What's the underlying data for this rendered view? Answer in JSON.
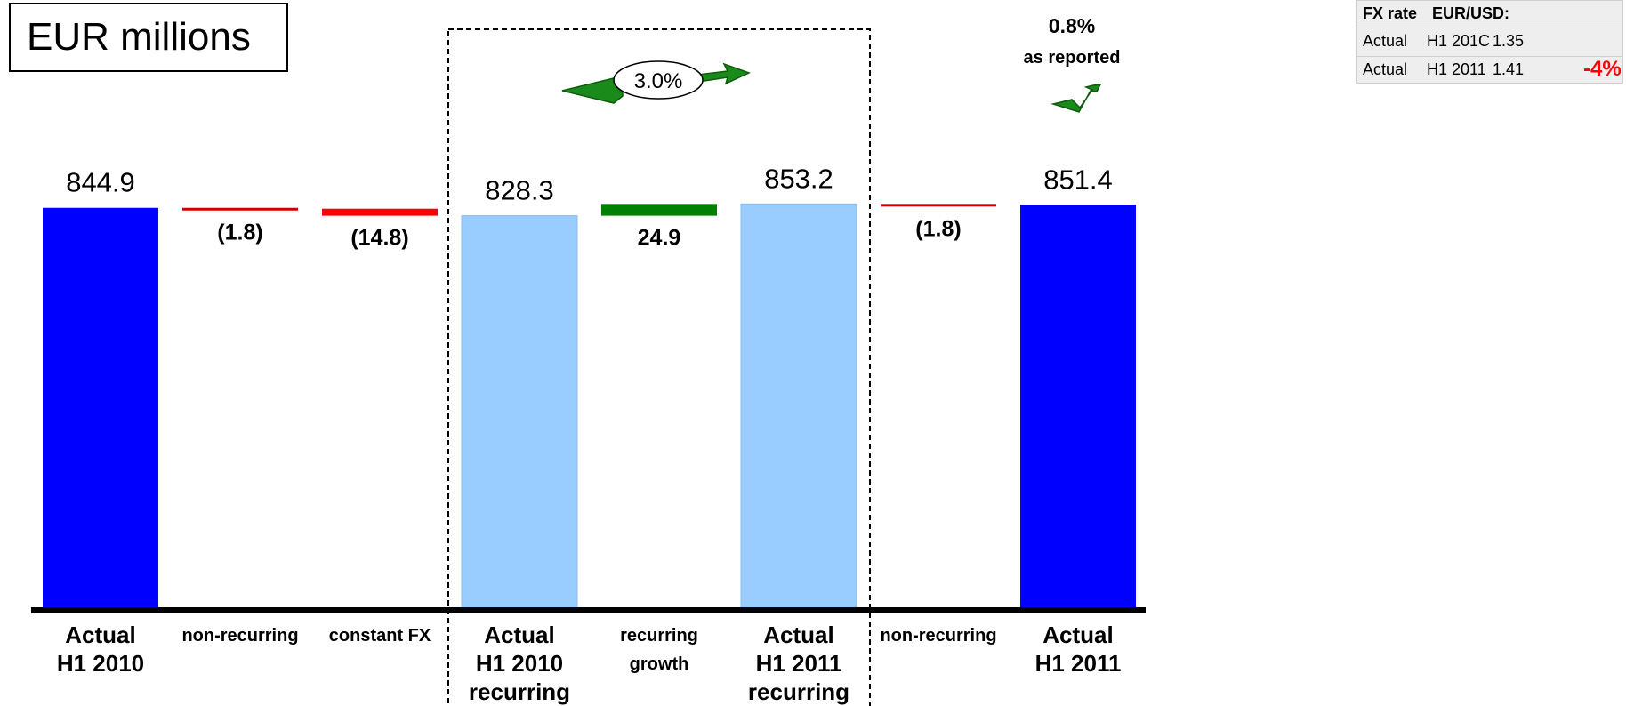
{
  "unit_label": "EUR millions",
  "fx_table": {
    "header": [
      "FX rate",
      "EUR/USD:"
    ],
    "rows": [
      {
        "label": "Actual",
        "period": "H1 201C",
        "rate": "1.35",
        "change": ""
      },
      {
        "label": "Actual",
        "period": "H1 2011",
        "rate": "1.41",
        "change": "-4%"
      }
    ]
  },
  "growth_callouts": {
    "recurring_growth": "3.0%",
    "reported_growth_value": "0.8%",
    "reported_growth_label": "as reported"
  },
  "colors": {
    "total": "#0000ff",
    "recurring_total": "#99ccff",
    "decrease": "#ff0000",
    "decrease_thin": "#cc0000",
    "increase": "#008000",
    "arrow": "#1a8a1a"
  },
  "chart_data": {
    "type": "bar",
    "subtype": "waterfall",
    "ylim": [
      0,
      880
    ],
    "categories": [
      [
        "Actual",
        "H1 2010"
      ],
      [
        "non-recurring"
      ],
      [
        "constant FX"
      ],
      [
        "Actual",
        "H1 2010",
        "recurring"
      ],
      [
        "recurring",
        "growth"
      ],
      [
        "Actual",
        "H1 2011",
        "recurring"
      ],
      [
        "non-recurring"
      ],
      [
        "Actual",
        "H1 2011"
      ]
    ],
    "bars": [
      {
        "kind": "total",
        "value": 844.9,
        "label": "844.9"
      },
      {
        "kind": "delta",
        "value": -1.8,
        "label": "(1.8)"
      },
      {
        "kind": "delta",
        "value": -14.8,
        "label": "(14.8)"
      },
      {
        "kind": "subtotal",
        "value": 828.3,
        "label": "828.3"
      },
      {
        "kind": "delta",
        "value": 24.9,
        "label": "24.9"
      },
      {
        "kind": "subtotal",
        "value": 853.2,
        "label": "853.2"
      },
      {
        "kind": "delta",
        "value": -1.8,
        "label": "(1.8)"
      },
      {
        "kind": "total",
        "value": 851.4,
        "label": "851.4"
      }
    ],
    "highlight_range": [
      3,
      5
    ],
    "grid": false,
    "legend": "none"
  }
}
